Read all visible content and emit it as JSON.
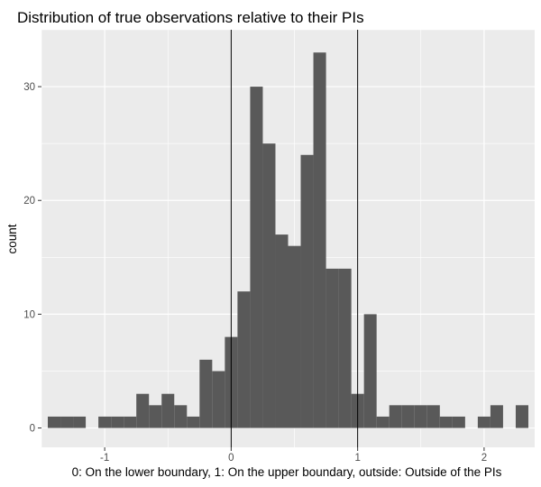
{
  "chart_data": {
    "type": "bar",
    "title": "Distribution of true observations relative to their PIs",
    "xlabel": "0: On the lower boundary, 1: On the upper boundary, outside: Outside of the PIs",
    "ylabel": "count",
    "xlim": [
      -1.5,
      2.4
    ],
    "ylim": [
      -1.7,
      35
    ],
    "x_ticks": [
      {
        "value": -1,
        "label": "-1"
      },
      {
        "value": 0,
        "label": "0"
      },
      {
        "value": 1,
        "label": "1"
      },
      {
        "value": 2,
        "label": "2"
      }
    ],
    "y_ticks": [
      {
        "value": 0,
        "label": "0"
      },
      {
        "value": 10,
        "label": "10"
      },
      {
        "value": 20,
        "label": "20"
      },
      {
        "value": 30,
        "label": "30"
      }
    ],
    "bin_width": 0.1,
    "bins": [
      {
        "x0": -1.45,
        "count": 1
      },
      {
        "x0": -1.35,
        "count": 1
      },
      {
        "x0": -1.25,
        "count": 1
      },
      {
        "x0": -1.05,
        "count": 1
      },
      {
        "x0": -0.95,
        "count": 1
      },
      {
        "x0": -0.85,
        "count": 1
      },
      {
        "x0": -0.75,
        "count": 3
      },
      {
        "x0": -0.65,
        "count": 2
      },
      {
        "x0": -0.55,
        "count": 3
      },
      {
        "x0": -0.45,
        "count": 2
      },
      {
        "x0": -0.35,
        "count": 1
      },
      {
        "x0": -0.25,
        "count": 6
      },
      {
        "x0": -0.15,
        "count": 5
      },
      {
        "x0": -0.05,
        "count": 8
      },
      {
        "x0": 0.05,
        "count": 12
      },
      {
        "x0": 0.15,
        "count": 30
      },
      {
        "x0": 0.25,
        "count": 25
      },
      {
        "x0": 0.35,
        "count": 17
      },
      {
        "x0": 0.45,
        "count": 16
      },
      {
        "x0": 0.55,
        "count": 24
      },
      {
        "x0": 0.65,
        "count": 33
      },
      {
        "x0": 0.75,
        "count": 14
      },
      {
        "x0": 0.85,
        "count": 14
      },
      {
        "x0": 0.95,
        "count": 3
      },
      {
        "x0": 1.05,
        "count": 10
      },
      {
        "x0": 1.15,
        "count": 1
      },
      {
        "x0": 1.25,
        "count": 2
      },
      {
        "x0": 1.35,
        "count": 2
      },
      {
        "x0": 1.45,
        "count": 2
      },
      {
        "x0": 1.55,
        "count": 2
      },
      {
        "x0": 1.65,
        "count": 1
      },
      {
        "x0": 1.75,
        "count": 1
      },
      {
        "x0": 1.95,
        "count": 1
      },
      {
        "x0": 2.05,
        "count": 2
      },
      {
        "x0": 2.25,
        "count": 2
      }
    ],
    "reference_lines_x": [
      0,
      1
    ],
    "grid": true,
    "bar_color": "#595959",
    "panel_background": "#ebebeb",
    "grid_color": "#ffffff",
    "reference_line_color": "#000000"
  }
}
